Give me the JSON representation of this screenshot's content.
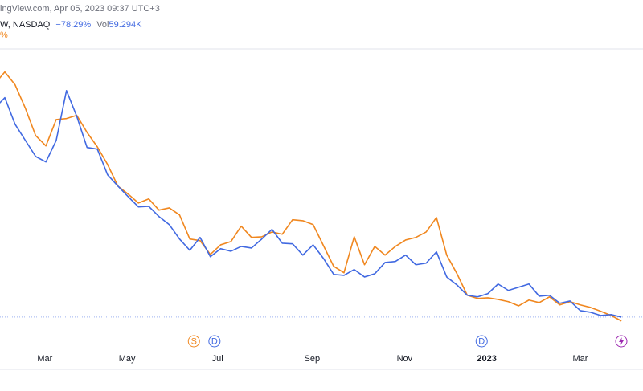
{
  "header": {
    "source": "ingView.com, Apr 05, 2023 09:37 UTC+3",
    "symbol": "W, NASDAQ",
    "change": {
      "value": -78.29,
      "label": "−78.29%"
    },
    "vol_label": "Vol",
    "vol": {
      "value": 59294,
      "label": "59.294K"
    },
    "second_change": "%"
  },
  "chart_data": {
    "type": "line",
    "xlim": [
      0.53,
      63.1
    ],
    "xticks": [
      {
        "value": 4.9,
        "label": "Mar"
      },
      {
        "value": 12.9,
        "label": "May"
      },
      {
        "value": 21.7,
        "label": "Jul"
      },
      {
        "value": 30.9,
        "label": "Sep"
      },
      {
        "value": 39.9,
        "label": "Nov"
      },
      {
        "value": 47.9,
        "label": "2023"
      },
      {
        "value": 57.0,
        "label": "Mar"
      }
    ],
    "ylim": [
      -101.3,
      20.4
    ],
    "series": [
      {
        "name": "W",
        "color": "#4169e1",
        "values": [
          -13.3,
          -10.0,
          -18.3,
          -23.3,
          -28.3,
          -30.0,
          -23.3,
          -7.8,
          -15.8,
          -25.5,
          -26.0,
          -34.0,
          -37.5,
          -40.8,
          -44.0,
          -43.8,
          -47.0,
          -49.5,
          -54.0,
          -57.5,
          -53.5,
          -59.5,
          -57.0,
          -57.8,
          -56.3,
          -56.8,
          -54.0,
          -51.0,
          -55.3,
          -55.5,
          -59.0,
          -55.8,
          -60.0,
          -65.0,
          -65.3,
          -63.5,
          -65.8,
          -64.8,
          -61.3,
          -61.0,
          -59.0,
          -62.0,
          -61.5,
          -58.0,
          -65.8,
          -68.3,
          -71.5,
          -72.0,
          -71.0,
          -68.0,
          -70.0,
          -69.0,
          -68.0,
          -71.8,
          -71.5,
          -74.0,
          -73.3,
          -76.3,
          -76.8,
          -77.8,
          -77.5,
          -78.29
        ]
      },
      {
        "color": "#f0871f",
        "values": [
          -5.8,
          -2.0,
          -6.0,
          -13.3,
          -21.8,
          -25.0,
          -16.8,
          -16.5,
          -15.5,
          -20.8,
          -25.3,
          -30.8,
          -37.5,
          -40.0,
          -42.8,
          -41.5,
          -45.0,
          -44.3,
          -46.5,
          -54.0,
          -54.5,
          -58.8,
          -55.8,
          -54.8,
          -50.0,
          -53.5,
          -53.3,
          -51.8,
          -52.5,
          -48.0,
          -48.3,
          -49.5,
          -56.0,
          -62.5,
          -64.5,
          -53.3,
          -62.0,
          -56.3,
          -59.0,
          -56.3,
          -54.3,
          -53.5,
          -51.8,
          -47.3,
          -59.0,
          -64.8,
          -71.5,
          -72.5,
          -72.3,
          -72.8,
          -73.5,
          -74.8,
          -73.0,
          -73.8,
          -72.0,
          -74.5,
          -73.5,
          -74.5,
          -75.3,
          -76.5,
          -77.8,
          -79.5
        ]
      }
    ],
    "events": [
      {
        "label": "S",
        "x": 19.4
      },
      {
        "label": "D",
        "x": 21.4
      },
      {
        "label": "D",
        "x": 47.4
      }
    ]
  }
}
